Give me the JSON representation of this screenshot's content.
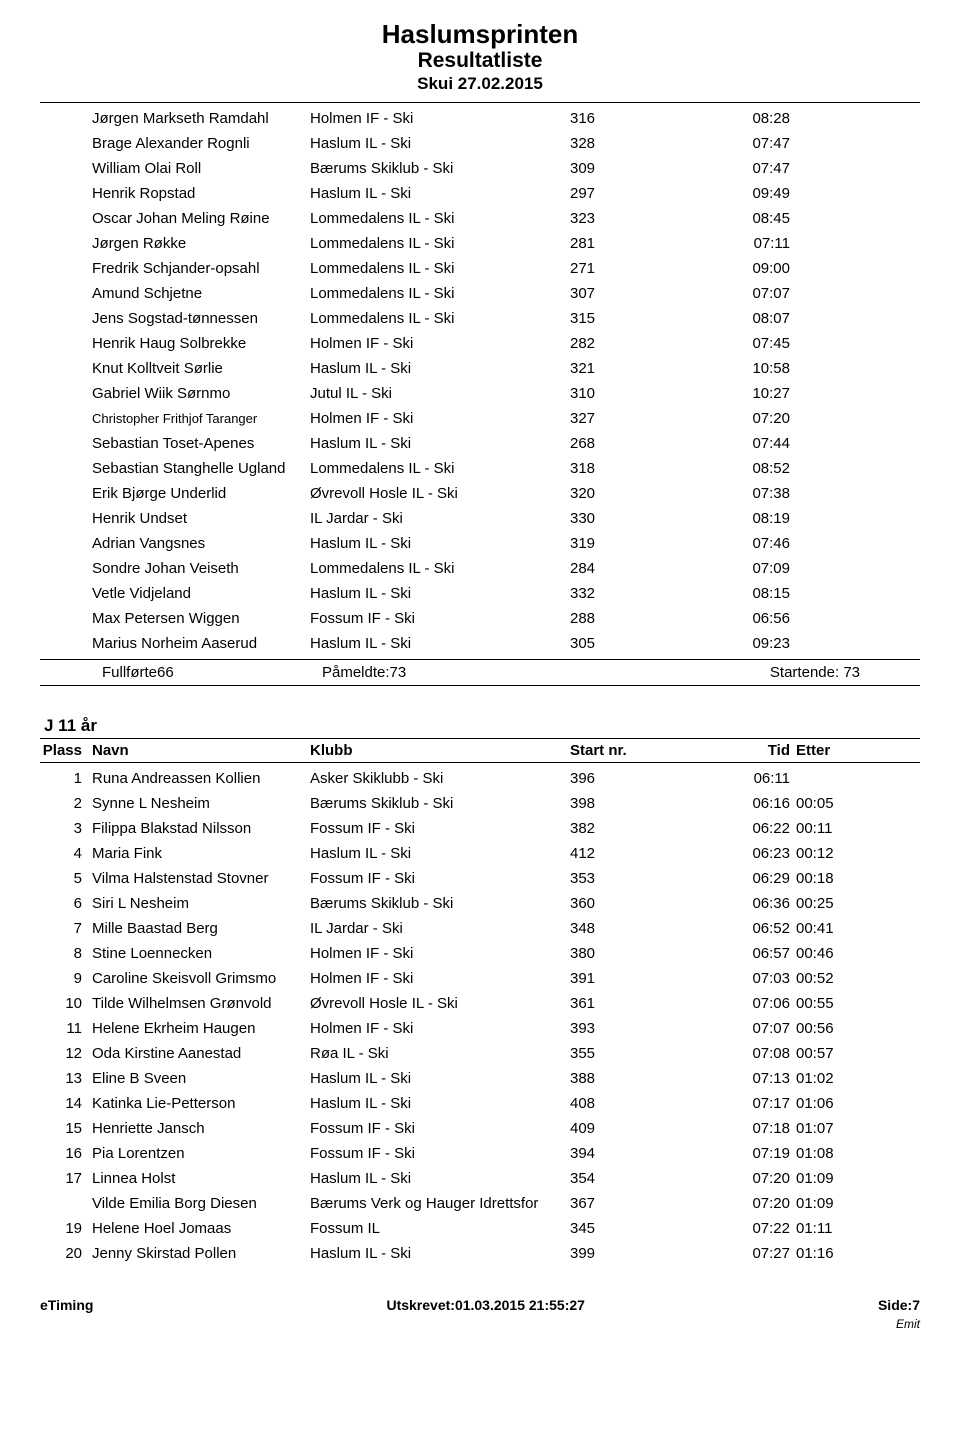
{
  "header": {
    "title": "Haslumsprinten",
    "subtitle": "Resultatliste",
    "event_date": "Skui 27.02.2015"
  },
  "table_headers": {
    "rank": "Plass",
    "name": "Navn",
    "club": "Klubb",
    "start": "Start nr.",
    "time": "Tid",
    "diff": "Etter"
  },
  "top_results": [
    {
      "rank": "",
      "name": "Jørgen Markseth Ramdahl",
      "club": "Holmen IF - Ski",
      "start": "316",
      "time": "08:28",
      "diff": ""
    },
    {
      "rank": "",
      "name": "Brage Alexander Rognli",
      "club": "Haslum IL - Ski",
      "start": "328",
      "time": "07:47",
      "diff": ""
    },
    {
      "rank": "",
      "name": "William Olai Roll",
      "club": "Bærums Skiklub - Ski",
      "start": "309",
      "time": "07:47",
      "diff": ""
    },
    {
      "rank": "",
      "name": "Henrik Ropstad",
      "club": "Haslum IL - Ski",
      "start": "297",
      "time": "09:49",
      "diff": ""
    },
    {
      "rank": "",
      "name": "Oscar Johan Meling Røine",
      "club": "Lommedalens IL - Ski",
      "start": "323",
      "time": "08:45",
      "diff": ""
    },
    {
      "rank": "",
      "name": "Jørgen Røkke",
      "club": "Lommedalens IL - Ski",
      "start": "281",
      "time": "07:11",
      "diff": ""
    },
    {
      "rank": "",
      "name": "Fredrik Schjander-opsahl",
      "club": "Lommedalens IL - Ski",
      "start": "271",
      "time": "09:00",
      "diff": ""
    },
    {
      "rank": "",
      "name": "Amund Schjetne",
      "club": "Lommedalens IL - Ski",
      "start": "307",
      "time": "07:07",
      "diff": ""
    },
    {
      "rank": "",
      "name": "Jens Sogstad-tønnessen",
      "club": "Lommedalens IL - Ski",
      "start": "315",
      "time": "08:07",
      "diff": ""
    },
    {
      "rank": "",
      "name": "Henrik Haug Solbrekke",
      "club": "Holmen IF - Ski",
      "start": "282",
      "time": "07:45",
      "diff": ""
    },
    {
      "rank": "",
      "name": "Knut Kolltveit Sørlie",
      "club": "Haslum IL - Ski",
      "start": "321",
      "time": "10:58",
      "diff": ""
    },
    {
      "rank": "",
      "name": "Gabriel Wiik Sørnmo",
      "club": "Jutul IL - Ski",
      "start": "310",
      "time": "10:27",
      "diff": ""
    },
    {
      "rank": "",
      "name": "Christopher Frithjof Taranger",
      "name_small": true,
      "club": "Holmen IF - Ski",
      "start": "327",
      "time": "07:20",
      "diff": ""
    },
    {
      "rank": "",
      "name": "Sebastian Toset-Apenes",
      "club": "Haslum IL - Ski",
      "start": "268",
      "time": "07:44",
      "diff": ""
    },
    {
      "rank": "",
      "name": "Sebastian Stanghelle Ugland",
      "club": "Lommedalens IL - Ski",
      "start": "318",
      "time": "08:52",
      "diff": ""
    },
    {
      "rank": "",
      "name": "Erik Bjørge Underlid",
      "club": "Øvrevoll Hosle IL - Ski",
      "start": "320",
      "time": "07:38",
      "diff": ""
    },
    {
      "rank": "",
      "name": "Henrik Undset",
      "club": "IL Jardar - Ski",
      "start": "330",
      "time": "08:19",
      "diff": ""
    },
    {
      "rank": "",
      "name": "Adrian Vangsnes",
      "club": "Haslum IL - Ski",
      "start": "319",
      "time": "07:46",
      "diff": ""
    },
    {
      "rank": "",
      "name": "Sondre Johan Veiseth",
      "club": "Lommedalens IL - Ski",
      "start": "284",
      "time": "07:09",
      "diff": ""
    },
    {
      "rank": "",
      "name": "Vetle Vidjeland",
      "club": "Haslum IL - Ski",
      "start": "332",
      "time": "08:15",
      "diff": ""
    },
    {
      "rank": "",
      "name": "Max Petersen Wiggen",
      "club": "Fossum IF - Ski",
      "start": "288",
      "time": "06:56",
      "diff": ""
    },
    {
      "rank": "",
      "name": "Marius Norheim Aaserud",
      "club": "Haslum IL - Ski",
      "start": "305",
      "time": "09:23",
      "diff": ""
    }
  ],
  "summary": {
    "completed": "Fullførte66",
    "registered_label": "Påmeldte:",
    "registered_value": "73",
    "starting_label": "Startende:",
    "starting_value": "73"
  },
  "category": {
    "title": "J 11 år",
    "rows": [
      {
        "rank": "1",
        "name": "Runa Andreassen Kollien",
        "club": "Asker Skiklubb - Ski",
        "start": "396",
        "time": "06:11",
        "diff": ""
      },
      {
        "rank": "2",
        "name": "Synne L Nesheim",
        "club": "Bærums Skiklub - Ski",
        "start": "398",
        "time": "06:16",
        "diff": "00:05"
      },
      {
        "rank": "3",
        "name": "Filippa Blakstad Nilsson",
        "club": "Fossum IF - Ski",
        "start": "382",
        "time": "06:22",
        "diff": "00:11"
      },
      {
        "rank": "4",
        "name": "Maria Fink",
        "club": "Haslum IL - Ski",
        "start": "412",
        "time": "06:23",
        "diff": "00:12"
      },
      {
        "rank": "5",
        "name": "Vilma Halstenstad Stovner",
        "club": "Fossum IF - Ski",
        "start": "353",
        "time": "06:29",
        "diff": "00:18"
      },
      {
        "rank": "6",
        "name": "Siri L Nesheim",
        "club": "Bærums Skiklub - Ski",
        "start": "360",
        "time": "06:36",
        "diff": "00:25"
      },
      {
        "rank": "7",
        "name": "Mille Baastad Berg",
        "club": "IL Jardar - Ski",
        "start": "348",
        "time": "06:52",
        "diff": "00:41"
      },
      {
        "rank": "8",
        "name": "Stine Loennecken",
        "club": "Holmen IF - Ski",
        "start": "380",
        "time": "06:57",
        "diff": "00:46"
      },
      {
        "rank": "9",
        "name": "Caroline Skeisvoll Grimsmo",
        "club": "Holmen IF - Ski",
        "start": "391",
        "time": "07:03",
        "diff": "00:52"
      },
      {
        "rank": "10",
        "name": "Tilde Wilhelmsen Grønvold",
        "club": "Øvrevoll Hosle IL - Ski",
        "start": "361",
        "time": "07:06",
        "diff": "00:55"
      },
      {
        "rank": "11",
        "name": "Helene Ekrheim Haugen",
        "club": "Holmen IF - Ski",
        "start": "393",
        "time": "07:07",
        "diff": "00:56"
      },
      {
        "rank": "12",
        "name": "Oda Kirstine Aanestad",
        "club": "Røa IL - Ski",
        "start": "355",
        "time": "07:08",
        "diff": "00:57"
      },
      {
        "rank": "13",
        "name": "Eline B Sveen",
        "club": "Haslum IL - Ski",
        "start": "388",
        "time": "07:13",
        "diff": "01:02"
      },
      {
        "rank": "14",
        "name": "Katinka Lie-Petterson",
        "club": "Haslum IL - Ski",
        "start": "408",
        "time": "07:17",
        "diff": "01:06"
      },
      {
        "rank": "15",
        "name": "Henriette Jansch",
        "club": "Fossum IF - Ski",
        "start": "409",
        "time": "07:18",
        "diff": "01:07"
      },
      {
        "rank": "16",
        "name": "Pia Lorentzen",
        "club": "Fossum IF - Ski",
        "start": "394",
        "time": "07:19",
        "diff": "01:08"
      },
      {
        "rank": "17",
        "name": "Linnea Holst",
        "club": "Haslum IL - Ski",
        "start": "354",
        "time": "07:20",
        "diff": "01:09"
      },
      {
        "rank": "",
        "name": "Vilde Emilia Borg Diesen",
        "club": "Bærums Verk og Hauger Idrettsfor",
        "start": "367",
        "time": "07:20",
        "diff": "01:09"
      },
      {
        "rank": "19",
        "name": "Helene Hoel Jomaas",
        "club": "Fossum IL",
        "start": "345",
        "time": "07:22",
        "diff": "01:11"
      },
      {
        "rank": "20",
        "name": "Jenny Skirstad Pollen",
        "club": "Haslum IL - Ski",
        "start": "399",
        "time": "07:27",
        "diff": "01:16"
      }
    ]
  },
  "footer": {
    "left": "eTiming",
    "center_label": "Utskrevet:",
    "center_value": "01.03.2015 21:55:27",
    "right_label": "Side:",
    "right_value": "7",
    "small": "Emit"
  }
}
